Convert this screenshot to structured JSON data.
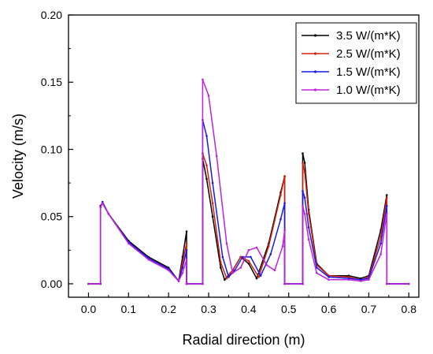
{
  "chart_data": {
    "type": "line",
    "title": "",
    "xlabel": "Radial direction (m)",
    "ylabel": "Velocity (m/s)",
    "xlim": [
      -0.05,
      0.825
    ],
    "ylim": [
      -0.01,
      0.2
    ],
    "xticks": [
      0.0,
      0.1,
      0.2,
      0.3,
      0.4,
      0.5,
      0.6,
      0.7,
      0.8
    ],
    "xtick_labels": [
      "0.0",
      "0.1",
      "0.2",
      "0.3",
      "0.4",
      "0.5",
      "0.6",
      "0.7",
      "0.8"
    ],
    "yticks": [
      0.0,
      0.05,
      0.1,
      0.15,
      0.2
    ],
    "ytick_labels": [
      "0.00",
      "0.05",
      "0.10",
      "0.15",
      "0.20"
    ],
    "grid": false,
    "legend_position": "top-right",
    "series": [
      {
        "name": "3.5 W/(m*K)",
        "color": "#000000",
        "x": [
          0.0,
          0.03,
          0.03,
          0.035,
          0.05,
          0.1,
          0.15,
          0.2,
          0.225,
          0.235,
          0.245,
          0.245,
          0.285,
          0.285,
          0.295,
          0.31,
          0.33,
          0.34,
          0.36,
          0.38,
          0.4,
          0.42,
          0.45,
          0.48,
          0.49,
          0.49,
          0.535,
          0.535,
          0.54,
          0.55,
          0.57,
          0.6,
          0.65,
          0.68,
          0.7,
          0.73,
          0.745,
          0.745,
          0.8
        ],
        "y": [
          0.0,
          0.0,
          0.058,
          0.06,
          0.052,
          0.032,
          0.02,
          0.012,
          0.002,
          0.02,
          0.039,
          0.0,
          0.0,
          0.093,
          0.078,
          0.05,
          0.012,
          0.003,
          0.01,
          0.02,
          0.015,
          0.004,
          0.03,
          0.068,
          0.08,
          0.0,
          0.0,
          0.097,
          0.09,
          0.055,
          0.015,
          0.006,
          0.006,
          0.004,
          0.006,
          0.04,
          0.066,
          0.0,
          0.0
        ]
      },
      {
        "name": "2.5 W/(m*K)",
        "color": "#d4200a",
        "x": [
          0.0,
          0.03,
          0.03,
          0.035,
          0.05,
          0.1,
          0.15,
          0.2,
          0.225,
          0.235,
          0.245,
          0.245,
          0.285,
          0.285,
          0.295,
          0.31,
          0.33,
          0.345,
          0.36,
          0.38,
          0.4,
          0.425,
          0.45,
          0.48,
          0.49,
          0.49,
          0.535,
          0.535,
          0.54,
          0.55,
          0.57,
          0.6,
          0.65,
          0.68,
          0.7,
          0.73,
          0.745,
          0.745,
          0.8
        ],
        "y": [
          0.0,
          0.0,
          0.057,
          0.06,
          0.052,
          0.031,
          0.019,
          0.011,
          0.002,
          0.016,
          0.03,
          0.0,
          0.0,
          0.097,
          0.088,
          0.06,
          0.016,
          0.004,
          0.01,
          0.02,
          0.017,
          0.005,
          0.028,
          0.066,
          0.08,
          0.0,
          0.0,
          0.09,
          0.083,
          0.052,
          0.014,
          0.006,
          0.005,
          0.003,
          0.005,
          0.035,
          0.064,
          0.0,
          0.0
        ]
      },
      {
        "name": "1.5 W/(m*K)",
        "color": "#1a1ae6",
        "x": [
          0.0,
          0.03,
          0.03,
          0.035,
          0.05,
          0.1,
          0.15,
          0.2,
          0.225,
          0.235,
          0.245,
          0.245,
          0.285,
          0.285,
          0.295,
          0.31,
          0.335,
          0.35,
          0.365,
          0.385,
          0.405,
          0.43,
          0.455,
          0.48,
          0.49,
          0.49,
          0.535,
          0.535,
          0.54,
          0.55,
          0.57,
          0.6,
          0.65,
          0.68,
          0.7,
          0.73,
          0.745,
          0.745,
          0.8
        ],
        "y": [
          0.0,
          0.0,
          0.057,
          0.061,
          0.052,
          0.031,
          0.019,
          0.011,
          0.002,
          0.012,
          0.025,
          0.0,
          0.0,
          0.122,
          0.11,
          0.075,
          0.02,
          0.005,
          0.01,
          0.02,
          0.02,
          0.006,
          0.022,
          0.048,
          0.06,
          0.0,
          0.0,
          0.069,
          0.064,
          0.042,
          0.012,
          0.005,
          0.004,
          0.003,
          0.004,
          0.03,
          0.058,
          0.0,
          0.0
        ]
      },
      {
        "name": "1.0 W/(m*K)",
        "color": "#c020e0",
        "x": [
          0.0,
          0.03,
          0.03,
          0.035,
          0.05,
          0.1,
          0.15,
          0.2,
          0.225,
          0.235,
          0.245,
          0.245,
          0.285,
          0.285,
          0.3,
          0.32,
          0.345,
          0.36,
          0.38,
          0.4,
          0.42,
          0.445,
          0.465,
          0.485,
          0.49,
          0.49,
          0.535,
          0.535,
          0.54,
          0.55,
          0.57,
          0.6,
          0.65,
          0.68,
          0.7,
          0.73,
          0.745,
          0.745,
          0.8
        ],
        "y": [
          0.0,
          0.0,
          0.057,
          0.06,
          0.052,
          0.03,
          0.018,
          0.01,
          0.002,
          0.008,
          0.018,
          0.0,
          0.0,
          0.152,
          0.14,
          0.095,
          0.03,
          0.008,
          0.012,
          0.025,
          0.027,
          0.014,
          0.01,
          0.028,
          0.04,
          0.0,
          0.0,
          0.058,
          0.052,
          0.033,
          0.008,
          0.003,
          0.003,
          0.002,
          0.003,
          0.022,
          0.052,
          0.0,
          0.0
        ]
      }
    ]
  }
}
